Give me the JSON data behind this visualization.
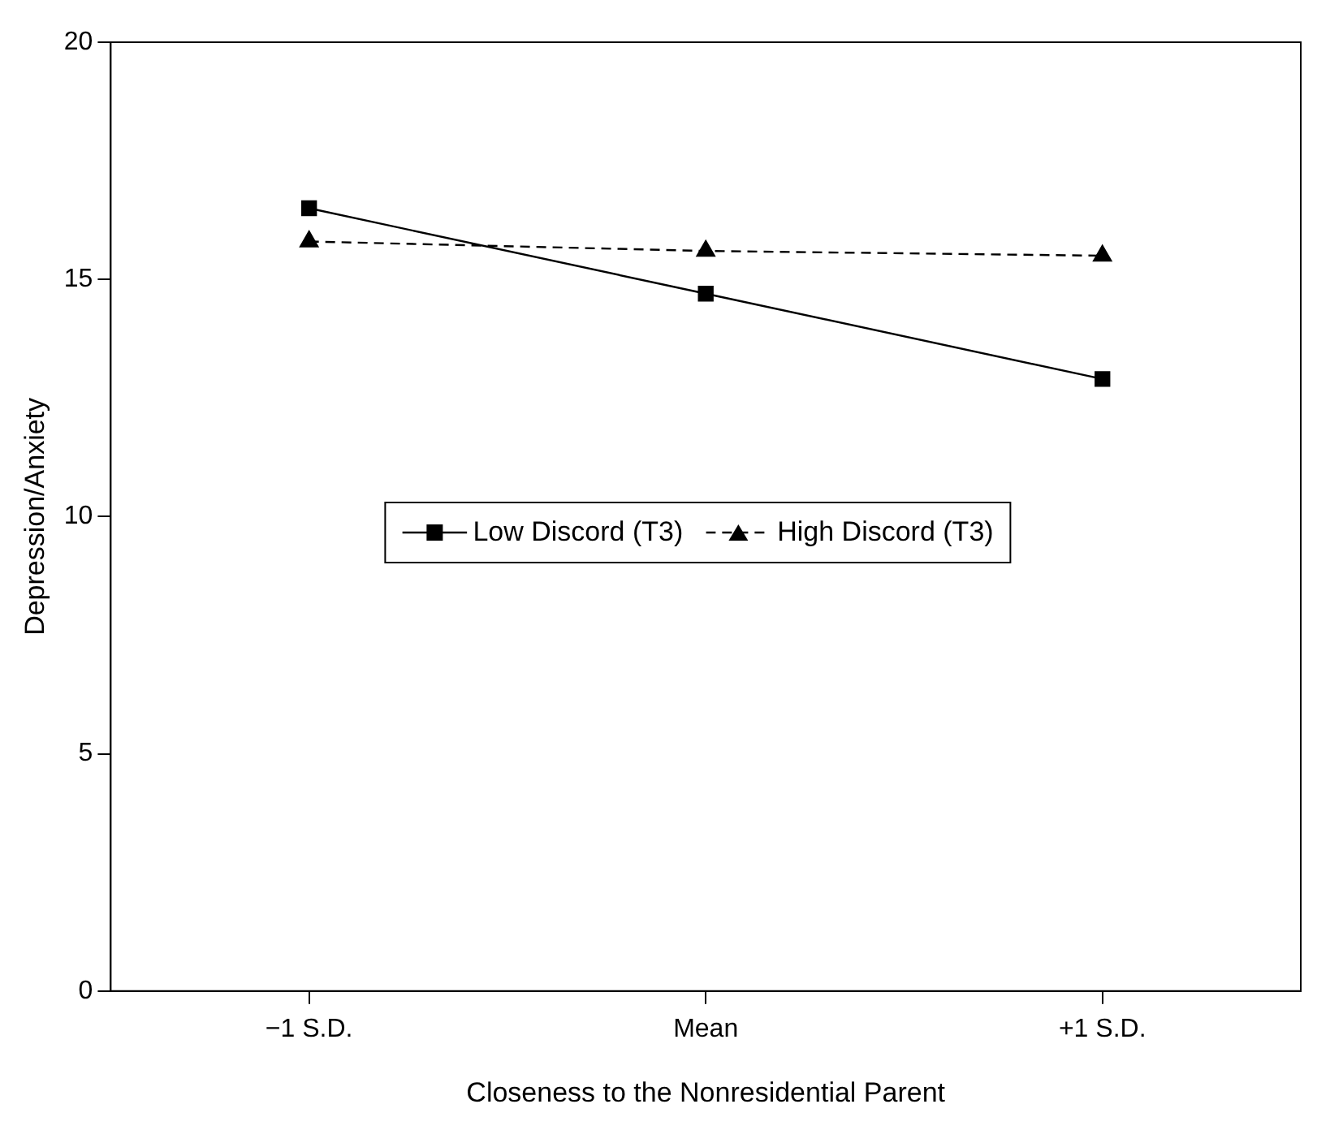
{
  "chart_data": {
    "type": "line",
    "xlabel": "Closeness to the Nonresidential Parent",
    "ylabel": "Depression/Anxiety",
    "categories": [
      "−1 S.D.",
      "Mean",
      "+1 S.D."
    ],
    "series": [
      {
        "name": "Low Discord (T3)",
        "color": "#000000",
        "values": [
          16.5,
          14.7,
          12.9
        ],
        "marker": "square",
        "line_style": "solid"
      },
      {
        "name": "High Discord (T3)",
        "color": "#000000",
        "values": [
          15.8,
          15.6,
          15.5
        ],
        "marker": "triangle",
        "line_style": "dashed"
      }
    ],
    "ylim": [
      0,
      20
    ],
    "yticks": [
      0,
      5,
      10,
      15,
      20
    ],
    "grid": false,
    "legend": "center"
  }
}
